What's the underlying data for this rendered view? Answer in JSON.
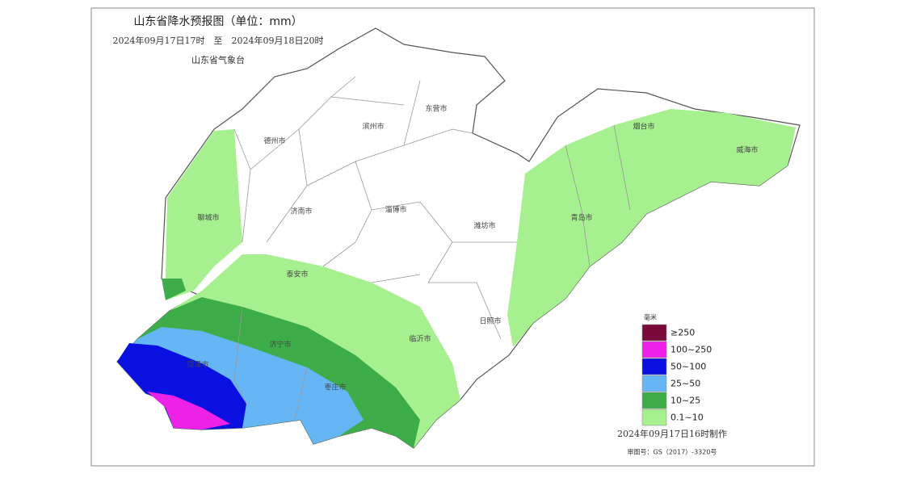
{
  "header": {
    "title": "山东省降水预报图（单位：mm）",
    "period": "2024年09月17日17时　至　2024年09月18日20时",
    "issuer": "山东省气象台"
  },
  "cities": [
    {
      "label": "德州市"
    },
    {
      "label": "滨州市"
    },
    {
      "label": "东营市"
    },
    {
      "label": "烟台市"
    },
    {
      "label": "威海市"
    },
    {
      "label": "聊城市"
    },
    {
      "label": "济南市"
    },
    {
      "label": "淄博市"
    },
    {
      "label": "潍坊市"
    },
    {
      "label": "青岛市"
    },
    {
      "label": "泰安市"
    },
    {
      "label": "济宁市"
    },
    {
      "label": "临沂市"
    },
    {
      "label": "日照市"
    },
    {
      "label": "菏泽市"
    },
    {
      "label": "枣庄市"
    }
  ],
  "legend": {
    "title": "毫米",
    "items": [
      {
        "label": "≥250",
        "color": "#7b0a3c"
      },
      {
        "label": "100~250",
        "color": "#ee22e6"
      },
      {
        "label": "50~100",
        "color": "#0a10e0"
      },
      {
        "label": "25~50",
        "color": "#66b5f5"
      },
      {
        "label": "10~25",
        "color": "#3cad48"
      },
      {
        "label": "0.1~10",
        "color": "#a6f090"
      }
    ]
  },
  "footer": {
    "made": "2024年09月17日16时制作",
    "approval": "审图号：GS（2017）-3320号"
  }
}
